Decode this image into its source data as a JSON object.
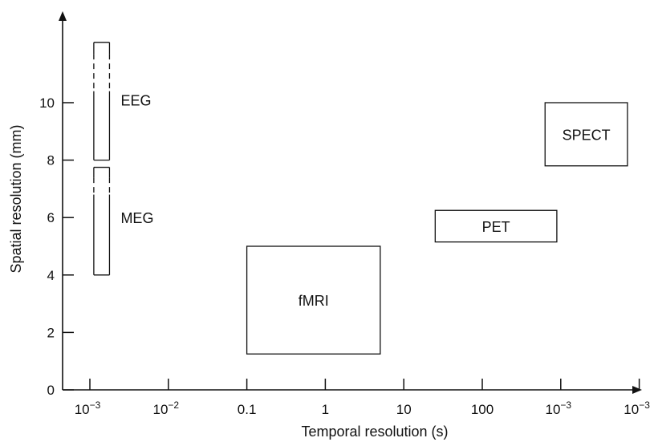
{
  "chart_data": {
    "type": "box-region",
    "xlabel": "Temporal resolution (s)",
    "ylabel": "Spatial resolution (mm)",
    "x_ticks": [
      {
        "base": "10",
        "exp": "−3"
      },
      {
        "base": "10",
        "exp": "−2"
      },
      {
        "base": "0.1",
        "exp": ""
      },
      {
        "base": "1",
        "exp": ""
      },
      {
        "base": "10",
        "exp": ""
      },
      {
        "base": "100",
        "exp": ""
      },
      {
        "base": "10",
        "exp": "−3"
      },
      {
        "base": "10",
        "exp": "−3"
      }
    ],
    "y_ticks": [
      "0",
      "2",
      "4",
      "6",
      "8",
      "10"
    ],
    "ylim": [
      0,
      12
    ],
    "x_scale": "log10 (decades)",
    "grid": false,
    "regions": [
      {
        "name": "EEG",
        "x": [
          -2.95,
          -2.75
        ],
        "y": [
          8.0,
          12.1
        ],
        "dashed_y": [
          10.4,
          11.7
        ],
        "label_pos": "right"
      },
      {
        "name": "MEG",
        "x": [
          -2.95,
          -2.75
        ],
        "y": [
          4.0,
          7.75
        ],
        "dashed_y": [
          6.8,
          7.4
        ],
        "label_pos": "right"
      },
      {
        "name": "fMRI",
        "x": [
          -1.0,
          0.7
        ],
        "y": [
          1.25,
          5.0
        ],
        "label_pos": "center"
      },
      {
        "name": "PET",
        "x": [
          1.4,
          2.95
        ],
        "y": [
          5.15,
          6.25
        ],
        "label_pos": "center"
      },
      {
        "name": "SPECT",
        "x": [
          2.8,
          3.85
        ],
        "y": [
          7.8,
          10.0
        ],
        "label_pos": "center"
      }
    ]
  }
}
